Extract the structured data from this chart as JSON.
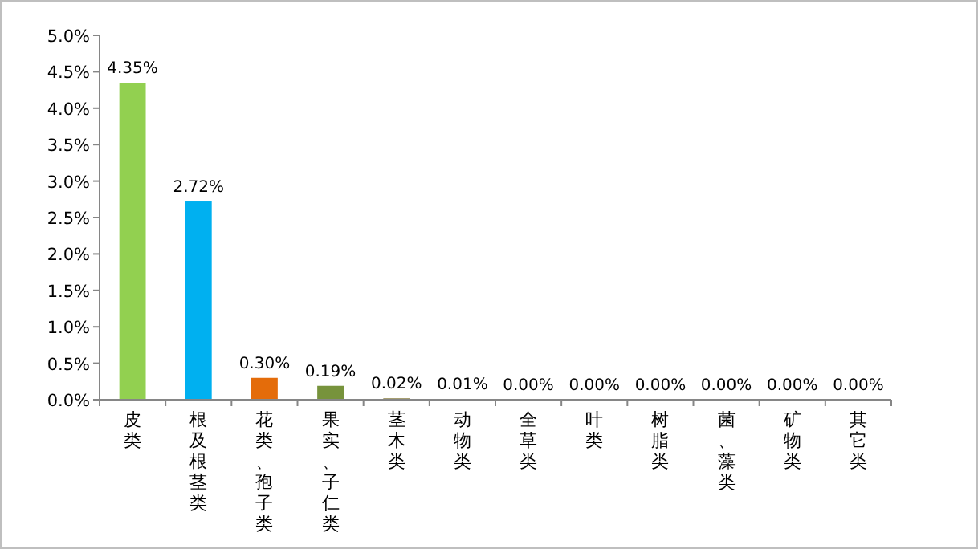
{
  "chart_data": {
    "type": "bar",
    "categories": [
      "皮类",
      "根及根茎类",
      "花类、孢子类",
      "果实、子仁类",
      "茎木类",
      "动物类",
      "全草类",
      "叶类",
      "树脂类",
      "菌、藻类",
      "矿物类",
      "其它类"
    ],
    "values": [
      4.35,
      2.72,
      0.3,
      0.19,
      0.02,
      0.01,
      0,
      0,
      0,
      0,
      0,
      0
    ],
    "value_labels": [
      "4.35%",
      "2.72%",
      "0.30%",
      "0.19%",
      "0.02%",
      "0.01%",
      "0.00%",
      "0.00%",
      "0.00%",
      "0.00%",
      "0.00%",
      "0.00%"
    ],
    "colors": [
      "#92d050",
      "#00b0f0",
      "#e46c0a",
      "#77933c",
      "#948a54",
      "#948a54",
      "#948a54",
      "#948a54",
      "#948a54",
      "#948a54",
      "#948a54",
      "#948a54"
    ],
    "ylim": [
      0,
      5
    ],
    "yticks": [
      {
        "value": 0,
        "label": "0.0%"
      },
      {
        "value": 0.5,
        "label": "0.5%"
      },
      {
        "value": 1,
        "label": "1.0%"
      },
      {
        "value": 1.5,
        "label": "1.5%"
      },
      {
        "value": 2,
        "label": "2.0%"
      },
      {
        "value": 2.5,
        "label": "2.5%"
      },
      {
        "value": 3,
        "label": "3.0%"
      },
      {
        "value": 3.5,
        "label": "3.5%"
      },
      {
        "value": 4,
        "label": "4.0%"
      },
      {
        "value": 4.5,
        "label": "4.5%"
      },
      {
        "value": 5,
        "label": "5.0%"
      }
    ],
    "grid": false
  }
}
